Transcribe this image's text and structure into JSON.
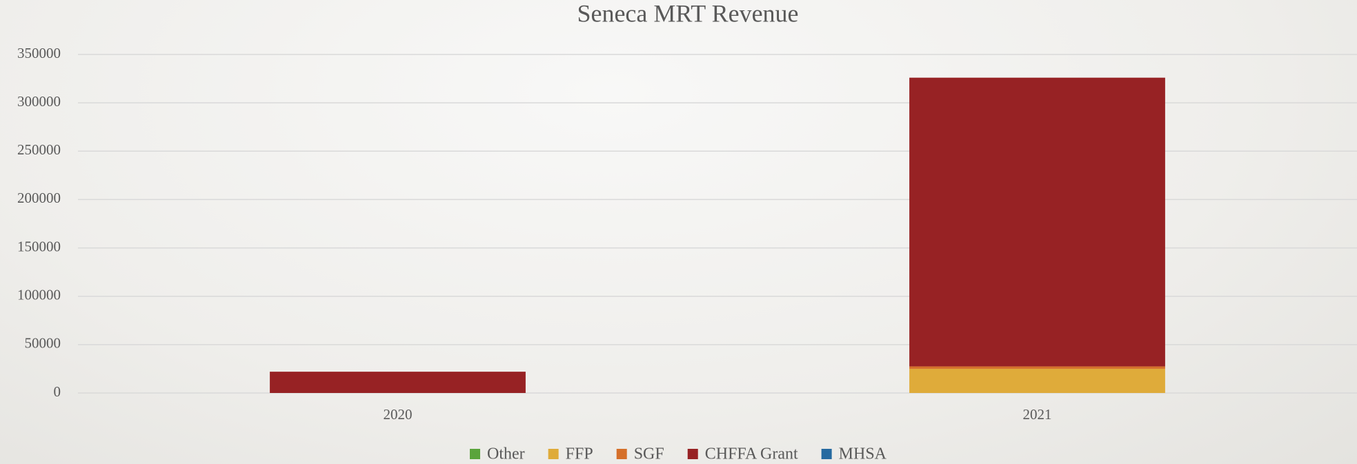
{
  "chart_data": {
    "type": "stacked_bar",
    "title": "Seneca MRT Revenue",
    "categories": [
      "2020",
      "2021"
    ],
    "series": [
      {
        "name": "Other",
        "color": "#5aa43c",
        "values": [
          0,
          0
        ]
      },
      {
        "name": "FFP",
        "color": "#dfab3a",
        "values": [
          0,
          25000
        ]
      },
      {
        "name": "SGF",
        "color": "#d5702a",
        "values": [
          0,
          2500
        ]
      },
      {
        "name": "CHFFA Grant",
        "color": "#972224",
        "values": [
          22000,
          298500
        ]
      },
      {
        "name": "MHSA",
        "color": "#266aa0",
        "values": [
          0,
          0
        ]
      }
    ],
    "ylim": [
      0,
      350000
    ],
    "yticks": [
      0,
      50000,
      100000,
      150000,
      200000,
      250000,
      300000,
      350000
    ],
    "grid": true,
    "legend": "bottom"
  }
}
